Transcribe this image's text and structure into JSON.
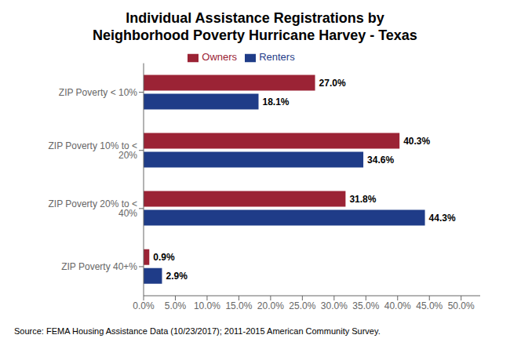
{
  "chart_data": {
    "type": "bar",
    "orientation": "horizontal",
    "title": "Individual Assistance Registrations by\nNeighborhood Poverty Hurricane Harvey - Texas",
    "categories": [
      "ZIP Poverty < 10%",
      "ZIP Poverty 10% to < 20%",
      "ZIP Poverty 20% to < 40%",
      "ZIP Poverty 40+%"
    ],
    "series": [
      {
        "name": "Owners",
        "color": "#9b2335",
        "values": [
          27.0,
          40.3,
          31.8,
          0.9
        ],
        "value_labels": [
          "27.0%",
          "40.3%",
          "31.8%",
          "0.9%"
        ]
      },
      {
        "name": "Renters",
        "color": "#1f3c88",
        "values": [
          18.1,
          34.6,
          44.3,
          2.9
        ],
        "value_labels": [
          "18.1%",
          "34.6%",
          "44.3%",
          "2.9%"
        ]
      }
    ],
    "xlim": [
      0,
      53
    ],
    "xticks": [
      {
        "value": 0,
        "label": "0.0%"
      },
      {
        "value": 5,
        "label": "5.0%"
      },
      {
        "value": 10,
        "label": "10.0%"
      },
      {
        "value": 15,
        "label": "15.0%"
      },
      {
        "value": 20,
        "label": "20.0%"
      },
      {
        "value": 25,
        "label": "25.0%"
      },
      {
        "value": 30,
        "label": "30.0%"
      },
      {
        "value": 35,
        "label": "35.0%"
      },
      {
        "value": 40,
        "label": "40.0%"
      },
      {
        "value": 45,
        "label": "45.0%"
      },
      {
        "value": 50,
        "label": "50.0%"
      }
    ],
    "data_labels": true,
    "legend": "top",
    "grid": false,
    "annotations": [
      "Source: FEMA Housing Assistance Data (10/23/2017); 2011-2015 American Community Survey."
    ]
  }
}
